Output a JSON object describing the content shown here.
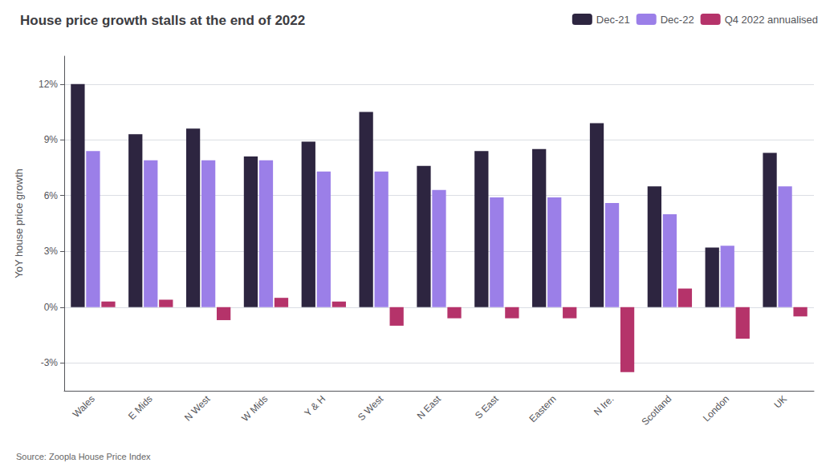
{
  "chart_data": {
    "type": "bar",
    "title": "House price growth stalls at the end of 2022",
    "ylabel": "YoY house price growth",
    "source": "Source: Zoopla House Price Index",
    "categories": [
      "Wales",
      "E Mids",
      "N West",
      "W Mids",
      "Y & H",
      "S West",
      "N East",
      "S East",
      "Eastern",
      "N Ire.",
      "Scotland",
      "London",
      "UK"
    ],
    "series": [
      {
        "name": "Dec-21",
        "color": "#2d2540",
        "values": [
          12.0,
          9.3,
          9.6,
          8.1,
          8.9,
          10.5,
          7.6,
          8.4,
          8.5,
          9.9,
          6.5,
          3.2,
          8.3
        ]
      },
      {
        "name": "Dec-22",
        "color": "#9b7fe8",
        "values": [
          8.4,
          7.9,
          7.9,
          7.9,
          7.3,
          7.3,
          6.3,
          5.9,
          5.9,
          5.6,
          5.0,
          3.3,
          6.5
        ]
      },
      {
        "name": "Q4 2022 annualised",
        "color": "#b5336a",
        "values": [
          0.3,
          0.4,
          -0.7,
          0.5,
          0.3,
          -1.0,
          -0.6,
          -0.6,
          -0.6,
          -3.5,
          1.0,
          -1.7,
          -0.5
        ]
      }
    ],
    "ylim": [
      -4.5,
      13.5
    ],
    "yticks": [
      {
        "value": -3,
        "label": "-3%"
      },
      {
        "value": 0,
        "label": "0%"
      },
      {
        "value": 3,
        "label": "3%"
      },
      {
        "value": 6,
        "label": "6%"
      },
      {
        "value": 9,
        "label": "9%"
      },
      {
        "value": 12,
        "label": "12%"
      }
    ],
    "grid": true,
    "legend": "upper right"
  }
}
